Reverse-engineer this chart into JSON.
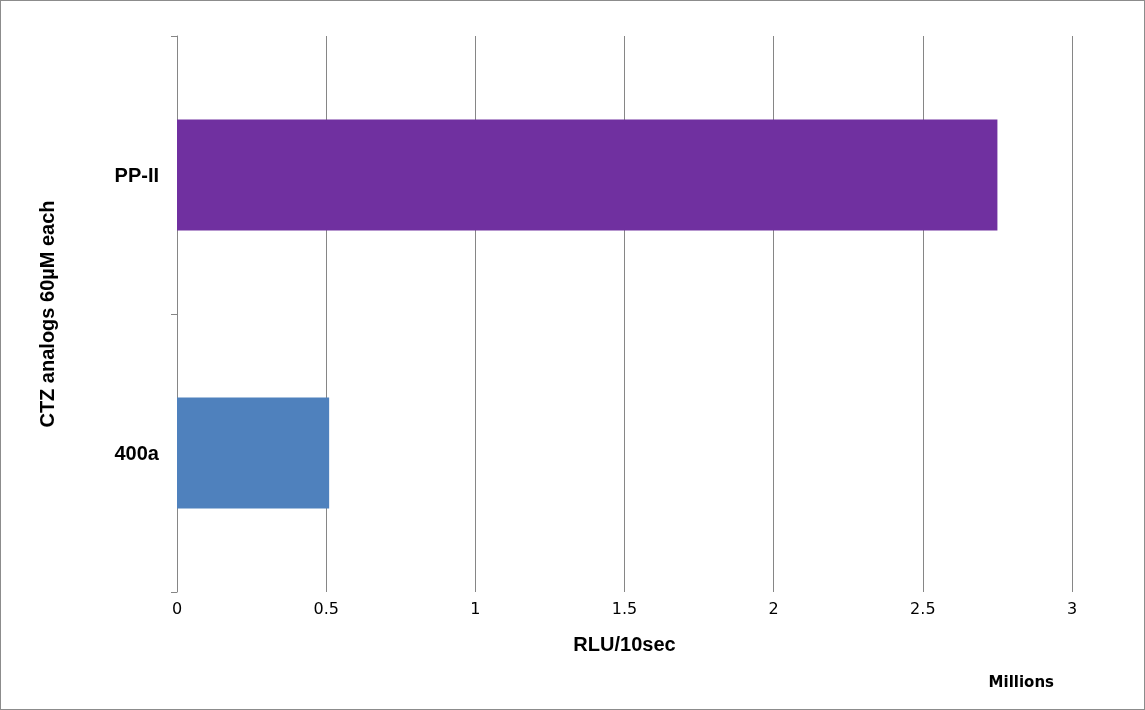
{
  "chart_data": {
    "type": "bar",
    "orientation": "horizontal",
    "categories": [
      "PP-II",
      "400a"
    ],
    "values": [
      2.75,
      0.51
    ],
    "colors": [
      "#7030a0",
      "#4f81bd"
    ],
    "xlim": [
      0,
      3
    ],
    "xticks": [
      0,
      0.5,
      1,
      1.5,
      2,
      2.5,
      3
    ],
    "xlabel": "RLU/10sec",
    "ylabel": "CTZ analogs 60µM each",
    "annotations": [
      "Millions"
    ],
    "grid": "x"
  }
}
